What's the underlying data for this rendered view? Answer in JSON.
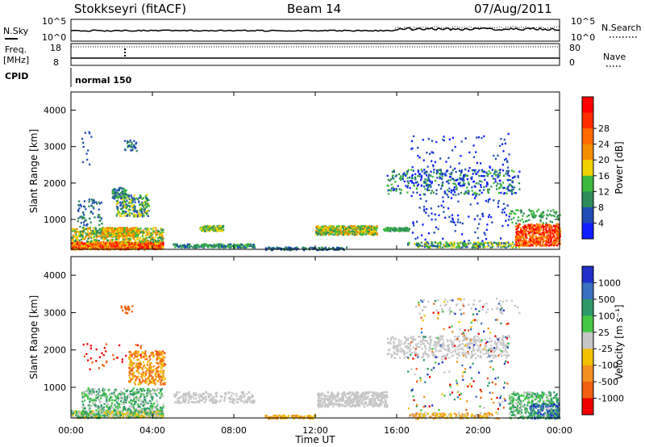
{
  "header": {
    "station": "Stokkseyri (fitACF)",
    "beam": "Beam 14",
    "date": "07/Aug/2011"
  },
  "sky_panel": {
    "left_label": "N.Sky",
    "right_label": "N.Search",
    "left_ticks": [
      "10^5",
      "10^0"
    ],
    "right_ticks": [
      "10^5",
      "10^0"
    ]
  },
  "freq_panel": {
    "left_label_1": "Freq.",
    "left_label_2": "[MHz]",
    "right_label": "Nave",
    "left_ticks": [
      "18",
      "8"
    ],
    "right_ticks": [
      "80",
      "0"
    ]
  },
  "cpid_panel": {
    "label": "CPID",
    "mode": "normal 150"
  },
  "chart_data": [
    {
      "type": "heatmap",
      "name": "power",
      "ylabel": "Slant Range [km]",
      "ylim": [
        180,
        4500
      ],
      "yticks": [
        "1000",
        "2000",
        "3000",
        "4000"
      ],
      "colorbar_label": "Power [dB]",
      "colorbar_ticks": [
        "4",
        "8",
        "12",
        "16",
        "20",
        "24",
        "28"
      ],
      "colors": [
        "#0f1eff",
        "#1e4db4",
        "#2e8c5a",
        "#3dba3d",
        "#f0d200",
        "#f58f00",
        "#ff6a00",
        "#ff2d00",
        "#ff0000"
      ]
    },
    {
      "type": "heatmap",
      "name": "velocity",
      "ylabel": "Slant Range [km]",
      "ylim": [
        180,
        4500
      ],
      "yticks": [
        "1000",
        "2000",
        "3000",
        "4000"
      ],
      "colorbar_label": "Velocity [m s⁻¹]",
      "colorbar_ticks": [
        "1000",
        "500",
        "100",
        "25",
        "-25",
        "-100",
        "-500",
        "-1000"
      ],
      "colors": [
        "#2030c8",
        "#3a70c0",
        "#2e9a6a",
        "#45c845",
        "#c6c6c6",
        "#f2c200",
        "#f39020",
        "#f06010",
        "#ee0000"
      ]
    }
  ],
  "x_axis": {
    "ticks": [
      "00:00",
      "04:00",
      "08:00",
      "12:00",
      "16:00",
      "20:00",
      "00:00"
    ],
    "label": "Time UT"
  }
}
